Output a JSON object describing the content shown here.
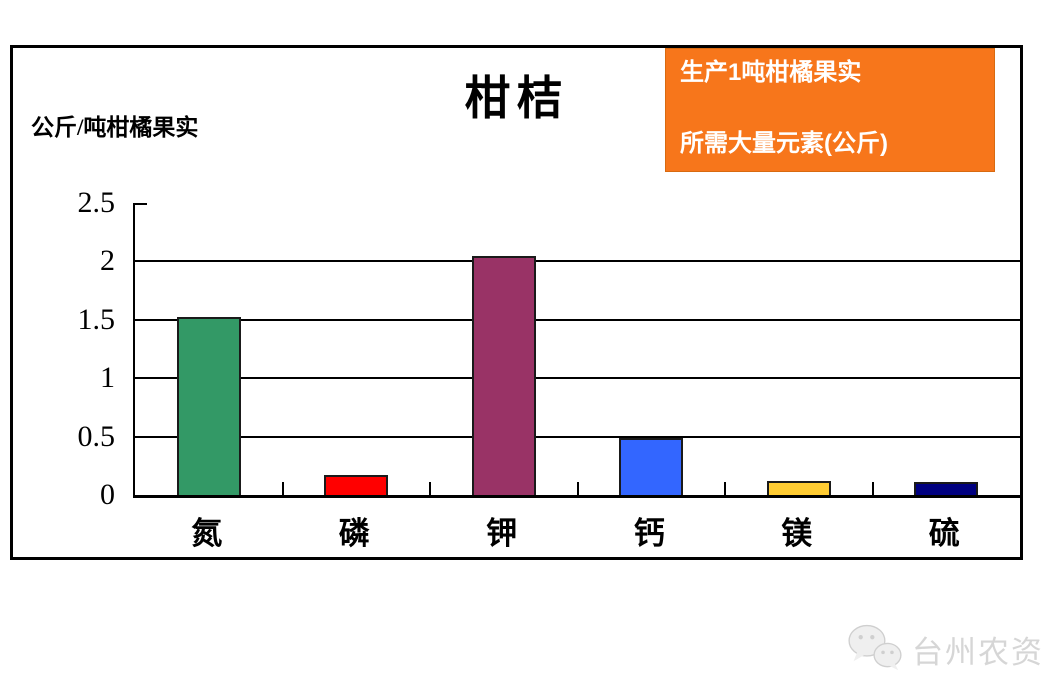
{
  "chart_data": {
    "type": "bar",
    "title": "柑桔",
    "ylabel": "公斤/吨柑橘果实",
    "xlabel": "",
    "categories": [
      "氮",
      "磷",
      "钾",
      "钙",
      "镁",
      "硫"
    ],
    "values": [
      1.52,
      0.17,
      2.05,
      0.49,
      0.12,
      0.11
    ],
    "bar_colors": [
      "#339966",
      "#FF0000",
      "#993366",
      "#3366FF",
      "#FFCC33",
      "#000080"
    ],
    "ylim": [
      0,
      2.5
    ],
    "yticks": [
      0,
      0.5,
      1,
      1.5,
      2,
      2.5
    ],
    "ytick_labels": [
      "0",
      "0.5",
      "1",
      "1.5",
      "2",
      "2.5"
    ],
    "grid": true,
    "legend_position": "none"
  },
  "callout": {
    "line1": "生产1吨柑橘果实",
    "line2": "所需大量元素(公斤)",
    "bg_color": "#F7761B",
    "text_color": "#FFFFFF"
  },
  "watermark": {
    "icon": "wechat-icon",
    "text": "台州农资",
    "color": "#D6D6D6"
  }
}
